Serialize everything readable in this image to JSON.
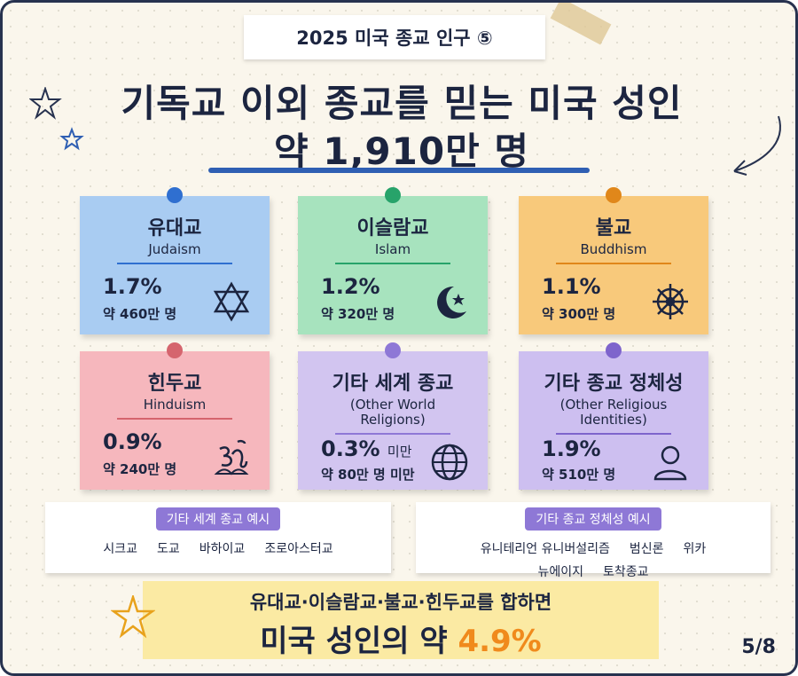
{
  "header": {
    "tag": "2025 미국 종교 인구 ⑤",
    "title_line1": "기독교 이외 종교를 믿는 미국 성인",
    "title_line2": "약 1,910만 명"
  },
  "cards": [
    {
      "name": "유대교",
      "english": "Judaism",
      "percent": "1.7%",
      "count": "약 460만 명"
    },
    {
      "name": "이슬람교",
      "english": "Islam",
      "percent": "1.2%",
      "count": "약 320만 명"
    },
    {
      "name": "불교",
      "english": "Buddhism",
      "percent": "1.1%",
      "count": "약 300만 명"
    },
    {
      "name": "힌두교",
      "english": "Hinduism",
      "percent": "0.9%",
      "count": "약 240만 명"
    },
    {
      "name": "기타 세계 종교",
      "english": "(Other World Religions)",
      "percent": "0.3%",
      "percent_note": "미만",
      "count": "약 80만 명 미만"
    },
    {
      "name": "기타 종교 정체성",
      "english": "(Other Religious Identities)",
      "percent": "1.9%",
      "count": "약 510만 명"
    }
  ],
  "notes": [
    {
      "label": "기타 세계 종교 예시",
      "items": [
        "시크교",
        "도교",
        "바하이교",
        "조로아스터교"
      ]
    },
    {
      "label": "기타 종교 정체성 예시",
      "items": [
        "유니테리언 유니버설리즘",
        "범신론",
        "위카",
        "뉴에이지",
        "토착종교"
      ]
    }
  ],
  "summary": {
    "line1": "유대교·이슬람교·불교·힌두교를 합하면",
    "line2": "미국 성인의 약",
    "highlight": "4.9%"
  },
  "page": "5/8"
}
